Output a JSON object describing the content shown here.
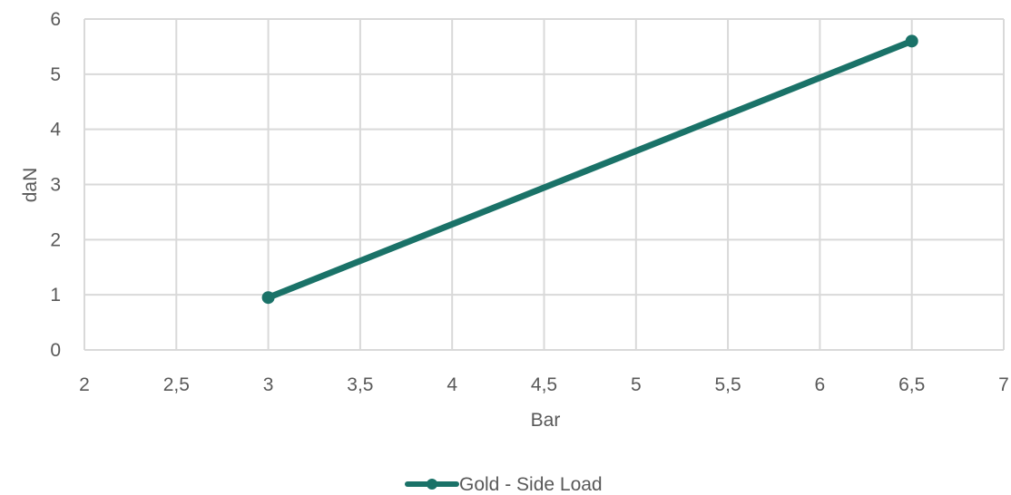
{
  "chart_data": {
    "type": "line",
    "title": "",
    "xlabel": "Bar",
    "ylabel": "daN",
    "xlim": [
      2,
      7
    ],
    "ylim": [
      0,
      6
    ],
    "x_ticks": [
      "2",
      "2,5",
      "3",
      "3,5",
      "4",
      "4,5",
      "5",
      "5,5",
      "6",
      "6,5",
      "7"
    ],
    "y_ticks": [
      "0",
      "1",
      "2",
      "3",
      "4",
      "5",
      "6"
    ],
    "grid": true,
    "legend_position": "bottom",
    "series": [
      {
        "name": "Gold - Side Load",
        "color": "#1a7268",
        "x": [
          3,
          6.5
        ],
        "y": [
          0.95,
          5.6
        ]
      }
    ]
  }
}
